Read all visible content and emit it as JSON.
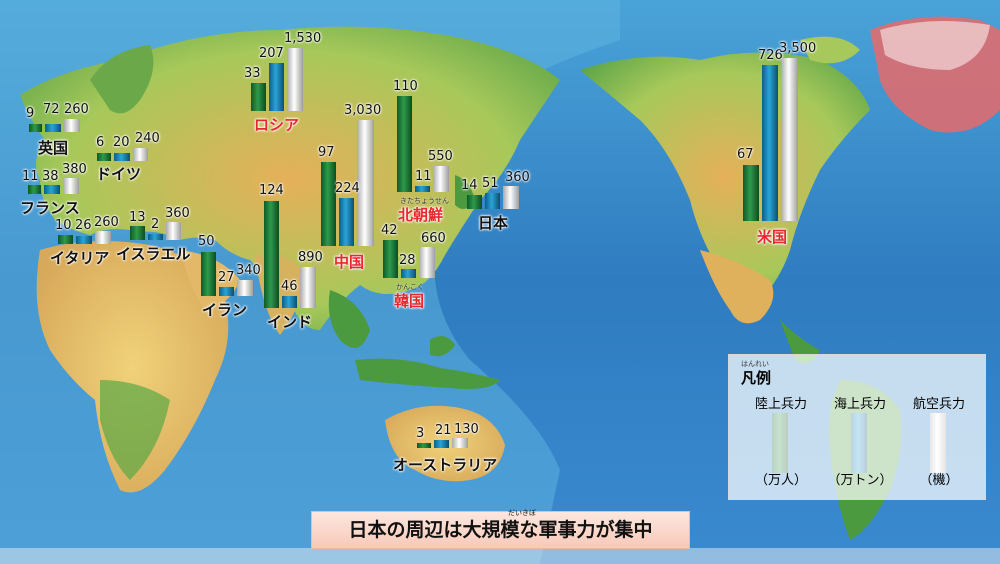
{
  "caption": {
    "text": "日本の周辺は大規模な軍事力が集中",
    "ruby": "だいきぼ"
  },
  "legend": {
    "title": "凡例",
    "title_ruby": "はんれい",
    "series": [
      {
        "label": "陸上兵力",
        "unit": "（万人）",
        "color": "#1f7a3a"
      },
      {
        "label": "海上兵力",
        "unit": "（万トン）",
        "color": "#1d8bb8"
      },
      {
        "label": "航空兵力",
        "unit": "（機）",
        "color": "#d8d8d8"
      }
    ]
  },
  "countries": [
    {
      "name": "英国",
      "red": false,
      "ruby": "",
      "ground": "9",
      "sea": "72",
      "air": "260"
    },
    {
      "name": "ドイツ",
      "red": false,
      "ruby": "",
      "ground": "6",
      "sea": "20",
      "air": "240"
    },
    {
      "name": "フランス",
      "red": false,
      "ruby": "",
      "ground": "11",
      "sea": "38",
      "air": "380"
    },
    {
      "name": "イタリア",
      "red": false,
      "ruby": "",
      "ground": "10",
      "sea": "26",
      "air": "260"
    },
    {
      "name": "イスラエル",
      "red": false,
      "ruby": "",
      "ground": "13",
      "sea": "2",
      "air": "360"
    },
    {
      "name": "イラン",
      "red": false,
      "ruby": "",
      "ground": "50",
      "sea": "27",
      "air": "340"
    },
    {
      "name": "インド",
      "red": false,
      "ruby": "",
      "ground": "124",
      "sea": "46",
      "air": "890"
    },
    {
      "name": "ロシア",
      "red": true,
      "ruby": "",
      "ground": "33",
      "sea": "207",
      "air": "1,530"
    },
    {
      "name": "中国",
      "red": true,
      "ruby": "",
      "ground": "97",
      "sea": "224",
      "air": "3,030"
    },
    {
      "name": "北朝鮮",
      "red": true,
      "ruby": "きたちょうせん",
      "ground": "110",
      "sea": "11",
      "air": "550"
    },
    {
      "name": "韓国",
      "red": true,
      "ruby": "かんこく",
      "ground": "42",
      "sea": "28",
      "air": "660"
    },
    {
      "name": "日本",
      "red": false,
      "ruby": "",
      "ground": "14",
      "sea": "51",
      "air": "360"
    },
    {
      "name": "米国",
      "red": true,
      "ruby": "",
      "ground": "67",
      "sea": "726",
      "air": "3,500"
    },
    {
      "name": "オーストラリア",
      "red": false,
      "ruby": "",
      "ground": "3",
      "sea": "21",
      "air": "130"
    }
  ],
  "colors": {
    "ocean_deep": "#2a6fb5",
    "ocean_shallow": "#66bde0",
    "land_low": "#5aa845",
    "land_mid": "#e8c765",
    "land_high": "#c9793f",
    "ice": "#f2f2f2",
    "greenland": "#e86a6a"
  }
}
